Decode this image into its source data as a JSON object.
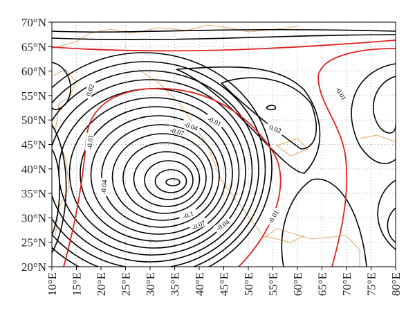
{
  "map": {
    "lat_ticks": [
      "70°N",
      "65°N",
      "60°N",
      "55°N",
      "50°N",
      "45°N",
      "40°N",
      "35°N",
      "30°N",
      "25°N",
      "20°N"
    ],
    "lon_ticks": [
      "10°E",
      "15°E",
      "20°E",
      "25°E",
      "30°E",
      "35°E",
      "40°E",
      "45°E",
      "50°E",
      "55°E",
      "60°E",
      "65°E",
      "70°E",
      "75°E",
      "80°E"
    ],
    "contour_labels": [
      "0.02",
      "-0.01",
      "-0.04",
      "-0.01",
      "-0.04",
      "-0.07",
      "0.02",
      "-0.01",
      "-0.1",
      "-0.07",
      "-0.04",
      "-0.01"
    ]
  }
}
